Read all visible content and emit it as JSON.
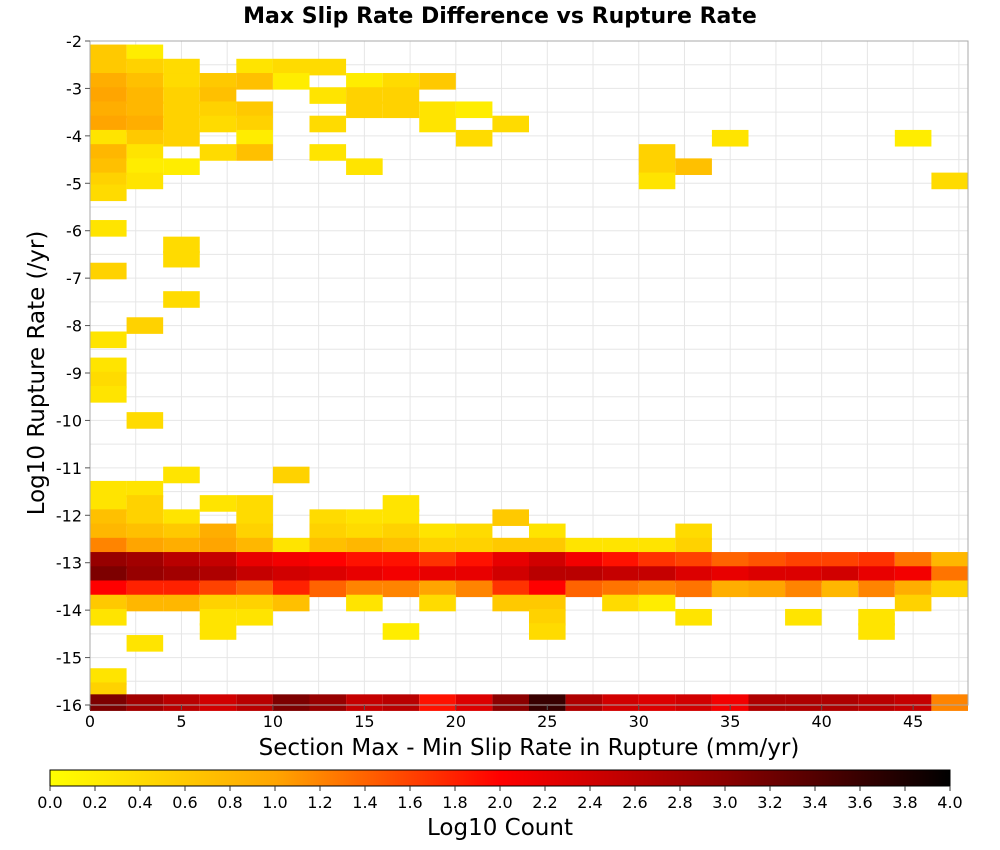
{
  "chart_data": {
    "type": "heatmap",
    "title": "Max Slip Rate Difference vs Rupture Rate",
    "xlabel": "Section Max - Min Slip Rate in Rupture (mm/yr)",
    "ylabel": "Log10 Rupture Rate (/yr)",
    "xlim": [
      0,
      48
    ],
    "ylim": [
      -16,
      -2
    ],
    "x_ticks": [
      "0",
      "5",
      "10",
      "15",
      "20",
      "25",
      "30",
      "35",
      "40",
      "45"
    ],
    "y_ticks": [
      "-2",
      "-3",
      "-4",
      "-5",
      "-6",
      "-7",
      "-8",
      "-9",
      "-10",
      "-11",
      "-12",
      "-13",
      "-14",
      "-15",
      "-16"
    ],
    "grid": true,
    "bin_width_x": 2,
    "bin_height_y": 0.35,
    "colorbar": {
      "label": "Log10 Count",
      "range": [
        0,
        4
      ],
      "ticks": [
        "0.0",
        "0.2",
        "0.4",
        "0.6",
        "0.8",
        "1.0",
        "1.2",
        "1.4",
        "1.6",
        "1.8",
        "2.0",
        "2.2",
        "2.4",
        "2.6",
        "2.8",
        "3.0",
        "3.2",
        "3.4",
        "3.6",
        "3.8",
        "4.0"
      ],
      "colors": [
        "#ffff00",
        "#ffa500",
        "#ff0000",
        "#8b0000",
        "#000000"
      ]
    },
    "cells": [
      {
        "x": 1,
        "y": -2.25,
        "v": 0.6
      },
      {
        "x": 3,
        "y": -2.25,
        "v": 0.2
      },
      {
        "x": 1,
        "y": -2.55,
        "v": 0.6
      },
      {
        "x": 3,
        "y": -2.55,
        "v": 0.5
      },
      {
        "x": 5,
        "y": -2.55,
        "v": 0.4
      },
      {
        "x": 9,
        "y": -2.55,
        "v": 0.3
      },
      {
        "x": 11,
        "y": -2.55,
        "v": 0.4
      },
      {
        "x": 13,
        "y": -2.55,
        "v": 0.4
      },
      {
        "x": 1,
        "y": -2.85,
        "v": 0.9
      },
      {
        "x": 3,
        "y": -2.85,
        "v": 0.7
      },
      {
        "x": 5,
        "y": -2.85,
        "v": 0.4
      },
      {
        "x": 7,
        "y": -2.85,
        "v": 0.6
      },
      {
        "x": 9,
        "y": -2.85,
        "v": 0.7
      },
      {
        "x": 11,
        "y": -2.85,
        "v": 0.2
      },
      {
        "x": 15,
        "y": -2.85,
        "v": 0.2
      },
      {
        "x": 17,
        "y": -2.85,
        "v": 0.4
      },
      {
        "x": 19,
        "y": -2.85,
        "v": 0.6
      },
      {
        "x": 1,
        "y": -3.15,
        "v": 1.0
      },
      {
        "x": 3,
        "y": -3.15,
        "v": 0.8
      },
      {
        "x": 5,
        "y": -3.15,
        "v": 0.5
      },
      {
        "x": 7,
        "y": -3.15,
        "v": 0.7
      },
      {
        "x": 13,
        "y": -3.15,
        "v": 0.3
      },
      {
        "x": 15,
        "y": -3.15,
        "v": 0.5
      },
      {
        "x": 17,
        "y": -3.15,
        "v": 0.5
      },
      {
        "x": 1,
        "y": -3.45,
        "v": 0.9
      },
      {
        "x": 3,
        "y": -3.45,
        "v": 0.8
      },
      {
        "x": 5,
        "y": -3.45,
        "v": 0.5
      },
      {
        "x": 7,
        "y": -3.45,
        "v": 0.5
      },
      {
        "x": 9,
        "y": -3.45,
        "v": 0.6
      },
      {
        "x": 15,
        "y": -3.45,
        "v": 0.5
      },
      {
        "x": 17,
        "y": -3.45,
        "v": 0.5
      },
      {
        "x": 19,
        "y": -3.45,
        "v": 0.3
      },
      {
        "x": 21,
        "y": -3.45,
        "v": 0.2
      },
      {
        "x": 1,
        "y": -3.75,
        "v": 1.0
      },
      {
        "x": 3,
        "y": -3.75,
        "v": 0.9
      },
      {
        "x": 5,
        "y": -3.75,
        "v": 0.5
      },
      {
        "x": 7,
        "y": -3.75,
        "v": 0.4
      },
      {
        "x": 9,
        "y": -3.75,
        "v": 0.5
      },
      {
        "x": 13,
        "y": -3.75,
        "v": 0.4
      },
      {
        "x": 19,
        "y": -3.75,
        "v": 0.3
      },
      {
        "x": 23,
        "y": -3.75,
        "v": 0.4
      },
      {
        "x": 1,
        "y": -4.05,
        "v": 0.3
      },
      {
        "x": 3,
        "y": -4.05,
        "v": 0.6
      },
      {
        "x": 5,
        "y": -4.05,
        "v": 0.5
      },
      {
        "x": 9,
        "y": -4.05,
        "v": 0.2
      },
      {
        "x": 21,
        "y": -4.05,
        "v": 0.4
      },
      {
        "x": 35,
        "y": -4.05,
        "v": 0.3
      },
      {
        "x": 45,
        "y": -4.05,
        "v": 0.2
      },
      {
        "x": 1,
        "y": -4.35,
        "v": 0.8
      },
      {
        "x": 3,
        "y": -4.35,
        "v": 0.3
      },
      {
        "x": 7,
        "y": -4.35,
        "v": 0.4
      },
      {
        "x": 9,
        "y": -4.35,
        "v": 0.7
      },
      {
        "x": 13,
        "y": -4.35,
        "v": 0.3
      },
      {
        "x": 31,
        "y": -4.35,
        "v": 0.5
      },
      {
        "x": 1,
        "y": -4.65,
        "v": 0.7
      },
      {
        "x": 3,
        "y": -4.65,
        "v": 0.2
      },
      {
        "x": 5,
        "y": -4.65,
        "v": 0.2
      },
      {
        "x": 15,
        "y": -4.65,
        "v": 0.3
      },
      {
        "x": 31,
        "y": -4.65,
        "v": 0.5
      },
      {
        "x": 33,
        "y": -4.65,
        "v": 0.7
      },
      {
        "x": 1,
        "y": -4.95,
        "v": 0.5
      },
      {
        "x": 3,
        "y": -4.95,
        "v": 0.3
      },
      {
        "x": 31,
        "y": -4.95,
        "v": 0.3
      },
      {
        "x": 47,
        "y": -4.95,
        "v": 0.4
      },
      {
        "x": 1,
        "y": -5.2,
        "v": 0.4
      },
      {
        "x": 1,
        "y": -5.95,
        "v": 0.3
      },
      {
        "x": 5,
        "y": -6.3,
        "v": 0.4
      },
      {
        "x": 5,
        "y": -6.6,
        "v": 0.4
      },
      {
        "x": 1,
        "y": -6.85,
        "v": 0.5
      },
      {
        "x": 5,
        "y": -7.45,
        "v": 0.4
      },
      {
        "x": 3,
        "y": -8.0,
        "v": 0.5
      },
      {
        "x": 1,
        "y": -8.3,
        "v": 0.3
      },
      {
        "x": 1,
        "y": -8.85,
        "v": 0.3
      },
      {
        "x": 1,
        "y": -9.15,
        "v": 0.4
      },
      {
        "x": 1,
        "y": -9.45,
        "v": 0.3
      },
      {
        "x": 3,
        "y": -10.0,
        "v": 0.4
      },
      {
        "x": 5,
        "y": -11.15,
        "v": 0.3
      },
      {
        "x": 11,
        "y": -11.15,
        "v": 0.5
      },
      {
        "x": 1,
        "y": -11.45,
        "v": 0.3
      },
      {
        "x": 3,
        "y": -11.45,
        "v": 0.3
      },
      {
        "x": 1,
        "y": -11.75,
        "v": 0.3
      },
      {
        "x": 3,
        "y": -11.75,
        "v": 0.5
      },
      {
        "x": 7,
        "y": -11.75,
        "v": 0.3
      },
      {
        "x": 9,
        "y": -11.75,
        "v": 0.4
      },
      {
        "x": 17,
        "y": -11.75,
        "v": 0.3
      },
      {
        "x": 1,
        "y": -12.05,
        "v": 0.7
      },
      {
        "x": 3,
        "y": -12.05,
        "v": 0.5
      },
      {
        "x": 5,
        "y": -12.05,
        "v": 0.3
      },
      {
        "x": 9,
        "y": -12.05,
        "v": 0.4
      },
      {
        "x": 13,
        "y": -12.05,
        "v": 0.4
      },
      {
        "x": 15,
        "y": -12.05,
        "v": 0.3
      },
      {
        "x": 17,
        "y": -12.05,
        "v": 0.3
      },
      {
        "x": 23,
        "y": -12.05,
        "v": 0.6
      },
      {
        "x": 1,
        "y": -12.35,
        "v": 0.8
      },
      {
        "x": 3,
        "y": -12.35,
        "v": 0.7
      },
      {
        "x": 5,
        "y": -12.35,
        "v": 0.6
      },
      {
        "x": 7,
        "y": -12.35,
        "v": 0.9
      },
      {
        "x": 9,
        "y": -12.35,
        "v": 0.5
      },
      {
        "x": 13,
        "y": -12.35,
        "v": 0.5
      },
      {
        "x": 15,
        "y": -12.35,
        "v": 0.4
      },
      {
        "x": 17,
        "y": -12.35,
        "v": 0.5
      },
      {
        "x": 19,
        "y": -12.35,
        "v": 0.3
      },
      {
        "x": 21,
        "y": -12.35,
        "v": 0.4
      },
      {
        "x": 25,
        "y": -12.35,
        "v": 0.3
      },
      {
        "x": 33,
        "y": -12.35,
        "v": 0.4
      },
      {
        "x": 1,
        "y": -12.65,
        "v": 1.2
      },
      {
        "x": 3,
        "y": -12.65,
        "v": 1.0
      },
      {
        "x": 5,
        "y": -12.65,
        "v": 0.9
      },
      {
        "x": 7,
        "y": -12.65,
        "v": 1.0
      },
      {
        "x": 9,
        "y": -12.65,
        "v": 0.8
      },
      {
        "x": 11,
        "y": -12.65,
        "v": 0.3
      },
      {
        "x": 13,
        "y": -12.65,
        "v": 0.7
      },
      {
        "x": 15,
        "y": -12.65,
        "v": 0.8
      },
      {
        "x": 17,
        "y": -12.65,
        "v": 0.7
      },
      {
        "x": 19,
        "y": -12.65,
        "v": 0.5
      },
      {
        "x": 21,
        "y": -12.65,
        "v": 0.5
      },
      {
        "x": 23,
        "y": -12.65,
        "v": 0.6
      },
      {
        "x": 25,
        "y": -12.65,
        "v": 0.6
      },
      {
        "x": 27,
        "y": -12.65,
        "v": 0.3
      },
      {
        "x": 29,
        "y": -12.65,
        "v": 0.3
      },
      {
        "x": 31,
        "y": -12.65,
        "v": 0.3
      },
      {
        "x": 33,
        "y": -12.65,
        "v": 0.5
      },
      {
        "x": 1,
        "y": -12.95,
        "v": 2.9
      },
      {
        "x": 3,
        "y": -12.95,
        "v": 2.8
      },
      {
        "x": 5,
        "y": -12.95,
        "v": 2.6
      },
      {
        "x": 7,
        "y": -12.95,
        "v": 2.5
      },
      {
        "x": 9,
        "y": -12.95,
        "v": 2.2
      },
      {
        "x": 11,
        "y": -12.95,
        "v": 2.1
      },
      {
        "x": 13,
        "y": -12.95,
        "v": 2.0
      },
      {
        "x": 15,
        "y": -12.95,
        "v": 1.9
      },
      {
        "x": 17,
        "y": -12.95,
        "v": 1.9
      },
      {
        "x": 19,
        "y": -12.95,
        "v": 1.7
      },
      {
        "x": 21,
        "y": -12.95,
        "v": 1.9
      },
      {
        "x": 23,
        "y": -12.95,
        "v": 2.2
      },
      {
        "x": 25,
        "y": -12.95,
        "v": 2.4
      },
      {
        "x": 27,
        "y": -12.95,
        "v": 2.1
      },
      {
        "x": 29,
        "y": -12.95,
        "v": 1.9
      },
      {
        "x": 31,
        "y": -12.95,
        "v": 1.7
      },
      {
        "x": 33,
        "y": -12.95,
        "v": 1.6
      },
      {
        "x": 35,
        "y": -12.95,
        "v": 1.4
      },
      {
        "x": 37,
        "y": -12.95,
        "v": 1.5
      },
      {
        "x": 39,
        "y": -12.95,
        "v": 1.6
      },
      {
        "x": 41,
        "y": -12.95,
        "v": 1.6
      },
      {
        "x": 43,
        "y": -12.95,
        "v": 1.7
      },
      {
        "x": 45,
        "y": -12.95,
        "v": 1.3
      },
      {
        "x": 47,
        "y": -12.95,
        "v": 0.8
      },
      {
        "x": 1,
        "y": -13.25,
        "v": 3.1
      },
      {
        "x": 3,
        "y": -13.25,
        "v": 2.9
      },
      {
        "x": 5,
        "y": -13.25,
        "v": 2.8
      },
      {
        "x": 7,
        "y": -13.25,
        "v": 2.7
      },
      {
        "x": 9,
        "y": -13.25,
        "v": 2.5
      },
      {
        "x": 11,
        "y": -13.25,
        "v": 2.4
      },
      {
        "x": 13,
        "y": -13.25,
        "v": 2.3
      },
      {
        "x": 15,
        "y": -13.25,
        "v": 2.2
      },
      {
        "x": 17,
        "y": -13.25,
        "v": 2.1
      },
      {
        "x": 19,
        "y": -13.25,
        "v": 2.2
      },
      {
        "x": 21,
        "y": -13.25,
        "v": 2.2
      },
      {
        "x": 23,
        "y": -13.25,
        "v": 2.4
      },
      {
        "x": 25,
        "y": -13.25,
        "v": 2.6
      },
      {
        "x": 27,
        "y": -13.25,
        "v": 2.6
      },
      {
        "x": 29,
        "y": -13.25,
        "v": 2.5
      },
      {
        "x": 31,
        "y": -13.25,
        "v": 2.5
      },
      {
        "x": 33,
        "y": -13.25,
        "v": 2.3
      },
      {
        "x": 35,
        "y": -13.25,
        "v": 2.2
      },
      {
        "x": 37,
        "y": -13.25,
        "v": 2.3
      },
      {
        "x": 39,
        "y": -13.25,
        "v": 2.3
      },
      {
        "x": 41,
        "y": -13.25,
        "v": 2.4
      },
      {
        "x": 43,
        "y": -13.25,
        "v": 2.2
      },
      {
        "x": 45,
        "y": -13.25,
        "v": 2.1
      },
      {
        "x": 47,
        "y": -13.25,
        "v": 1.3
      },
      {
        "x": 1,
        "y": -13.55,
        "v": 2.0
      },
      {
        "x": 3,
        "y": -13.55,
        "v": 1.8
      },
      {
        "x": 5,
        "y": -13.55,
        "v": 1.8
      },
      {
        "x": 7,
        "y": -13.55,
        "v": 1.6
      },
      {
        "x": 9,
        "y": -13.55,
        "v": 1.4
      },
      {
        "x": 11,
        "y": -13.55,
        "v": 1.8
      },
      {
        "x": 13,
        "y": -13.55,
        "v": 1.4
      },
      {
        "x": 15,
        "y": -13.55,
        "v": 1.2
      },
      {
        "x": 17,
        "y": -13.55,
        "v": 1.2
      },
      {
        "x": 19,
        "y": -13.55,
        "v": 1.0
      },
      {
        "x": 21,
        "y": -13.55,
        "v": 1.2
      },
      {
        "x": 23,
        "y": -13.55,
        "v": 1.7
      },
      {
        "x": 25,
        "y": -13.55,
        "v": 2.0
      },
      {
        "x": 27,
        "y": -13.55,
        "v": 1.4
      },
      {
        "x": 29,
        "y": -13.55,
        "v": 1.3
      },
      {
        "x": 31,
        "y": -13.55,
        "v": 1.2
      },
      {
        "x": 33,
        "y": -13.55,
        "v": 1.3
      },
      {
        "x": 35,
        "y": -13.55,
        "v": 0.9
      },
      {
        "x": 37,
        "y": -13.55,
        "v": 1.0
      },
      {
        "x": 39,
        "y": -13.55,
        "v": 1.2
      },
      {
        "x": 41,
        "y": -13.55,
        "v": 0.8
      },
      {
        "x": 43,
        "y": -13.55,
        "v": 1.2
      },
      {
        "x": 45,
        "y": -13.55,
        "v": 0.9
      },
      {
        "x": 47,
        "y": -13.55,
        "v": 0.5
      },
      {
        "x": 1,
        "y": -13.85,
        "v": 0.6
      },
      {
        "x": 3,
        "y": -13.85,
        "v": 0.8
      },
      {
        "x": 5,
        "y": -13.85,
        "v": 0.8
      },
      {
        "x": 7,
        "y": -13.85,
        "v": 0.5
      },
      {
        "x": 9,
        "y": -13.85,
        "v": 0.5
      },
      {
        "x": 11,
        "y": -13.85,
        "v": 0.7
      },
      {
        "x": 15,
        "y": -13.85,
        "v": 0.3
      },
      {
        "x": 19,
        "y": -13.85,
        "v": 0.4
      },
      {
        "x": 23,
        "y": -13.85,
        "v": 0.6
      },
      {
        "x": 25,
        "y": -13.85,
        "v": 0.6
      },
      {
        "x": 29,
        "y": -13.85,
        "v": 0.4
      },
      {
        "x": 31,
        "y": -13.85,
        "v": 0.2
      },
      {
        "x": 45,
        "y": -13.85,
        "v": 0.5
      },
      {
        "x": 1,
        "y": -14.15,
        "v": 0.3
      },
      {
        "x": 7,
        "y": -14.15,
        "v": 0.3
      },
      {
        "x": 9,
        "y": -14.15,
        "v": 0.3
      },
      {
        "x": 25,
        "y": -14.15,
        "v": 0.5
      },
      {
        "x": 33,
        "y": -14.15,
        "v": 0.3
      },
      {
        "x": 39,
        "y": -14.15,
        "v": 0.3
      },
      {
        "x": 43,
        "y": -14.15,
        "v": 0.3
      },
      {
        "x": 7,
        "y": -14.45,
        "v": 0.3
      },
      {
        "x": 17,
        "y": -14.45,
        "v": 0.2
      },
      {
        "x": 25,
        "y": -14.45,
        "v": 0.4
      },
      {
        "x": 43,
        "y": -14.45,
        "v": 0.3
      },
      {
        "x": 3,
        "y": -14.7,
        "v": 0.3
      },
      {
        "x": 1,
        "y": -15.4,
        "v": 0.3
      },
      {
        "x": 1,
        "y": -15.7,
        "v": 0.5
      },
      {
        "x": 1,
        "y": -15.95,
        "v": 3.1
      },
      {
        "x": 3,
        "y": -15.95,
        "v": 2.8
      },
      {
        "x": 5,
        "y": -15.95,
        "v": 2.6
      },
      {
        "x": 7,
        "y": -15.95,
        "v": 2.4
      },
      {
        "x": 9,
        "y": -15.95,
        "v": 2.6
      },
      {
        "x": 11,
        "y": -15.95,
        "v": 3.1
      },
      {
        "x": 13,
        "y": -15.95,
        "v": 2.9
      },
      {
        "x": 15,
        "y": -15.95,
        "v": 2.5
      },
      {
        "x": 17,
        "y": -15.95,
        "v": 2.6
      },
      {
        "x": 19,
        "y": -15.95,
        "v": 1.9
      },
      {
        "x": 21,
        "y": -15.95,
        "v": 2.3
      },
      {
        "x": 23,
        "y": -15.95,
        "v": 3.0
      },
      {
        "x": 25,
        "y": -15.95,
        "v": 3.6
      },
      {
        "x": 27,
        "y": -15.95,
        "v": 2.7
      },
      {
        "x": 29,
        "y": -15.95,
        "v": 2.4
      },
      {
        "x": 31,
        "y": -15.95,
        "v": 2.3
      },
      {
        "x": 33,
        "y": -15.95,
        "v": 2.4
      },
      {
        "x": 35,
        "y": -15.95,
        "v": 2.1
      },
      {
        "x": 37,
        "y": -15.95,
        "v": 2.7
      },
      {
        "x": 39,
        "y": -15.95,
        "v": 2.7
      },
      {
        "x": 41,
        "y": -15.95,
        "v": 2.7
      },
      {
        "x": 43,
        "y": -15.95,
        "v": 2.6
      },
      {
        "x": 45,
        "y": -15.95,
        "v": 2.5
      },
      {
        "x": 47,
        "y": -15.95,
        "v": 1.2
      }
    ]
  }
}
